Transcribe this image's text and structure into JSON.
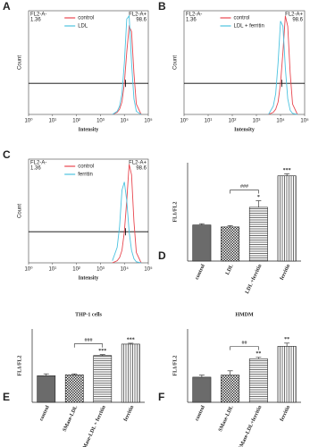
{
  "chart_data": [
    {
      "type": "line",
      "panel": "A",
      "x_label": "Intensity",
      "y_label": "Count",
      "xlim": [
        0,
        5
      ],
      "xticks": [
        {
          "value": 0,
          "label": "10⁰"
        },
        {
          "value": 1,
          "label": "10¹"
        },
        {
          "value": 2,
          "label": "10²"
        },
        {
          "value": 3,
          "label": "10³"
        },
        {
          "value": 4,
          "label": "10⁴"
        },
        {
          "value": 5,
          "label": "10⁵"
        }
      ],
      "ylim": [
        0,
        1
      ],
      "gate_left": {
        "label": "FL2-A-",
        "value": 1.36
      },
      "gate_right": {
        "label": "FL2-A+",
        "value": 98.6
      },
      "x": [
        3.5,
        3.7,
        3.8,
        3.9,
        4.0,
        4.1,
        4.2,
        4.3,
        4.4,
        4.5,
        4.7
      ],
      "series": [
        {
          "name": "control",
          "color": "#e8474f",
          "values": [
            0,
            0.02,
            0.05,
            0.12,
            0.3,
            0.6,
            0.85,
            0.8,
            0.4,
            0.1,
            0
          ]
        },
        {
          "name": "LDL",
          "color": "#4cc3e0",
          "values": [
            0,
            0.03,
            0.08,
            0.2,
            0.5,
            0.92,
            0.95,
            0.5,
            0.15,
            0.03,
            0
          ]
        }
      ]
    },
    {
      "type": "line",
      "panel": "B",
      "x_label": "Intensity",
      "y_label": "Count",
      "xlim": [
        0,
        5
      ],
      "xticks": [
        {
          "value": 0,
          "label": "10⁰"
        },
        {
          "value": 1,
          "label": "10¹"
        },
        {
          "value": 2,
          "label": "10²"
        },
        {
          "value": 3,
          "label": "10³"
        },
        {
          "value": 4,
          "label": "10⁴"
        },
        {
          "value": 5,
          "label": "10⁵"
        }
      ],
      "ylim": [
        0,
        1
      ],
      "gate_left": {
        "label": "FL2-A-",
        "value": 1.36
      },
      "gate_right": {
        "label": "FL2-A+",
        "value": 98.6
      },
      "x": [
        3.5,
        3.7,
        3.8,
        3.9,
        4.0,
        4.1,
        4.2,
        4.3,
        4.4,
        4.5,
        4.7
      ],
      "series": [
        {
          "name": "control",
          "color": "#e8474f",
          "values": [
            0,
            0.02,
            0.05,
            0.12,
            0.3,
            0.6,
            0.95,
            0.85,
            0.4,
            0.1,
            0
          ]
        },
        {
          "name": "LDL + ferritin",
          "color": "#4cc3e0",
          "values": [
            0,
            0.08,
            0.2,
            0.5,
            0.9,
            0.85,
            0.45,
            0.15,
            0.04,
            0.01,
            0
          ]
        }
      ]
    },
    {
      "type": "line",
      "panel": "C",
      "x_label": "Intensity",
      "y_label": "Count",
      "xlim": [
        0,
        5
      ],
      "xticks": [
        {
          "value": 0,
          "label": "10⁰"
        },
        {
          "value": 1,
          "label": "10¹"
        },
        {
          "value": 2,
          "label": "10²"
        },
        {
          "value": 3,
          "label": "10³"
        },
        {
          "value": 4,
          "label": "10⁴"
        },
        {
          "value": 5,
          "label": "10⁵"
        }
      ],
      "ylim": [
        0,
        1
      ],
      "gate_left": {
        "label": "FL2-A-",
        "value": 1.36
      },
      "gate_right": {
        "label": "FL2-A+",
        "value": 98.6
      },
      "x": [
        3.5,
        3.7,
        3.8,
        3.9,
        4.0,
        4.1,
        4.2,
        4.3,
        4.4,
        4.5,
        4.7
      ],
      "series": [
        {
          "name": "control",
          "color": "#e8474f",
          "values": [
            0,
            0.02,
            0.05,
            0.12,
            0.3,
            0.6,
            0.95,
            0.85,
            0.4,
            0.1,
            0
          ]
        },
        {
          "name": "ferritin",
          "color": "#4cc3e0",
          "values": [
            0.02,
            0.15,
            0.35,
            0.7,
            0.78,
            0.6,
            0.3,
            0.12,
            0.04,
            0.01,
            0
          ]
        }
      ]
    },
    {
      "type": "bar",
      "panel": "D",
      "y_label": "FL1/FL2",
      "categories": [
        "control",
        "LDL",
        "LDL +ferritin",
        "ferritin"
      ],
      "values": [
        0.55,
        0.52,
        0.82,
        1.3
      ],
      "errors": [
        0.02,
        0.02,
        0.1,
        0.03
      ],
      "color": "#6b6b6b",
      "patterns": [
        "solid",
        "checker",
        "hlines",
        "vlines"
      ],
      "ylim": [
        0,
        1.5
      ],
      "bracket": "###",
      "value_annotations": [
        null,
        null,
        "*",
        "***"
      ]
    },
    {
      "type": "bar",
      "panel": "E",
      "title": "THP-1 cells",
      "y_label": "FL1/FL2",
      "categories": [
        "control",
        "SMase-LDL",
        "SMase-LDL + ferritin",
        "ferritin"
      ],
      "values": [
        0.58,
        0.6,
        1.02,
        1.27
      ],
      "errors": [
        0.04,
        0.02,
        0.02,
        0.02
      ],
      "color": "#6b6b6b",
      "patterns": [
        "solid",
        "checker",
        "hlines",
        "vlines"
      ],
      "ylim": [
        0,
        1.6
      ],
      "bracket": "###",
      "value_annotations": [
        null,
        null,
        "***",
        "***"
      ]
    },
    {
      "type": "bar",
      "panel": "F",
      "title": "HMDM",
      "y_label": "FL1/FL2",
      "categories": [
        "control",
        "SMase-LDL",
        "SMase-LDL+ferritin",
        "ferritin"
      ],
      "values": [
        0.48,
        0.52,
        0.83,
        1.07
      ],
      "errors": [
        0.04,
        0.08,
        0.03,
        0.06
      ],
      "color": "#6b6b6b",
      "patterns": [
        "solid",
        "checker",
        "hlines",
        "vlines"
      ],
      "ylim": [
        0,
        1.4
      ],
      "bracket": "##",
      "value_annotations": [
        null,
        null,
        "**",
        "**"
      ]
    }
  ]
}
